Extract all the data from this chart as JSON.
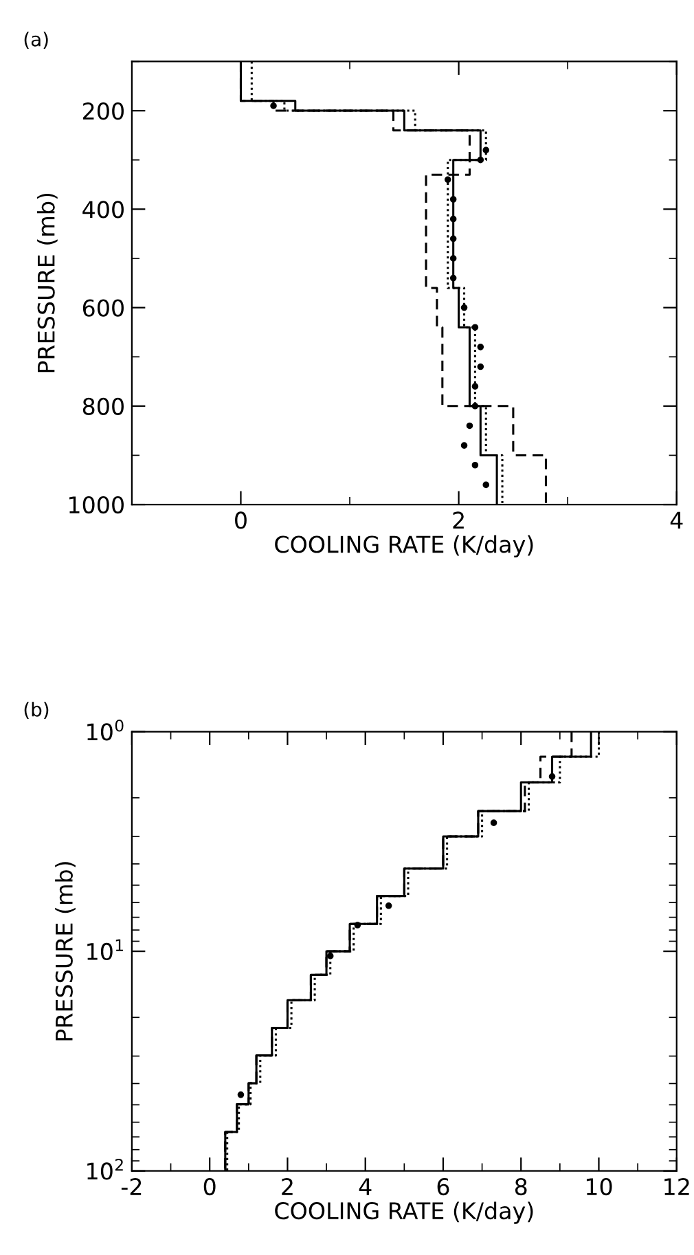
{
  "chart_data": [
    {
      "type": "step",
      "title": "(a)",
      "xlabel": "COOLING RATE (K/day)",
      "ylabel": "PRESSURE (mb)",
      "xlim": [
        -1,
        4
      ],
      "xticks": [
        0,
        2,
        4
      ],
      "ylim": [
        1000,
        100
      ],
      "yticks": [
        200,
        400,
        600,
        800,
        1000
      ],
      "series": [
        {
          "color": "#000000",
          "line_style": "solid",
          "x": [
            0.0,
            0.5,
            1.5,
            2.2,
            1.95,
            2.0,
            2.1,
            2.2,
            2.35,
            2.35
          ],
          "values": [
            100,
            180,
            200,
            240,
            300,
            560,
            640,
            800,
            900,
            1000
          ]
        },
        {
          "color": "#000000",
          "line_style": "dotted",
          "x": [
            0.1,
            0.4,
            1.6,
            2.25,
            1.9,
            2.05,
            2.15,
            2.25,
            2.4,
            2.4
          ],
          "values": [
            100,
            180,
            200,
            240,
            300,
            560,
            640,
            800,
            900,
            1000
          ]
        },
        {
          "color": "#000000",
          "line_style": "dashed",
          "x": [
            0.0,
            0.3,
            1.4,
            2.1,
            1.7,
            1.8,
            1.85,
            2.5,
            2.8,
            2.8
          ],
          "values": [
            100,
            180,
            200,
            240,
            330,
            560,
            640,
            800,
            900,
            1000
          ]
        },
        {
          "type": "scatter",
          "color": "#000000",
          "marker": "circle",
          "x": [
            0.3,
            2.25,
            2.2,
            1.9,
            1.95,
            1.95,
            1.95,
            1.95,
            1.95,
            2.05,
            2.15,
            2.2,
            2.2,
            2.15,
            2.15,
            2.1,
            2.05,
            2.15,
            2.25
          ],
          "values": [
            190,
            280,
            300,
            340,
            380,
            420,
            460,
            500,
            540,
            600,
            640,
            680,
            720,
            760,
            800,
            840,
            880,
            920,
            960
          ]
        }
      ]
    },
    {
      "type": "step",
      "title": "(b)",
      "xlabel": "COOLING RATE (K/day)",
      "ylabel": "PRESSURE (mb)",
      "log": "y",
      "xlim": [
        -2,
        12
      ],
      "xticks": [
        -2,
        0,
        2,
        4,
        6,
        8,
        10,
        12
      ],
      "ylim": [
        100,
        1
      ],
      "yticks": [
        {
          "value": 1,
          "label": "10$^{0}$"
        },
        {
          "value": 10,
          "label": "10$^{1}$"
        },
        {
          "value": 100,
          "label": "10$^{2}$"
        }
      ],
      "series": [
        {
          "color": "#000000",
          "line_style": "solid",
          "x": [
            9.8,
            8.8,
            8.0,
            6.9,
            6.0,
            5.0,
            4.3,
            3.6,
            3.0,
            2.6,
            2.0,
            1.6,
            1.2,
            1.0,
            0.7,
            0.4,
            0.4
          ],
          "values": [
            1,
            1.3,
            1.7,
            2.3,
            3.0,
            4.2,
            5.6,
            7.5,
            10,
            12.8,
            16.7,
            22.3,
            29.8,
            39.9,
            49.7,
            66.5,
            100
          ]
        },
        {
          "color": "#000000",
          "line_style": "dotted",
          "x": [
            10.0,
            9.0,
            8.2,
            7.0,
            6.1,
            5.1,
            4.4,
            3.7,
            3.1,
            2.7,
            2.1,
            1.7,
            1.3,
            1.05,
            0.75,
            0.45,
            0.45
          ],
          "values": [
            1,
            1.3,
            1.7,
            2.3,
            3.0,
            4.2,
            5.6,
            7.5,
            10,
            12.8,
            16.7,
            22.3,
            29.8,
            39.9,
            49.7,
            66.5,
            100
          ]
        },
        {
          "color": "#000000",
          "line_style": "dashed",
          "x": [
            9.3,
            8.5,
            8.1,
            6.9,
            6.0,
            5.0,
            4.3,
            3.6,
            3.0,
            2.6,
            2.0,
            1.6,
            1.2,
            1.0,
            0.7,
            0.4,
            0.4
          ],
          "values": [
            1,
            1.3,
            1.7,
            2.3,
            3.0,
            4.2,
            5.6,
            7.5,
            10,
            12.8,
            16.7,
            22.3,
            29.8,
            39.9,
            49.7,
            66.5,
            100
          ]
        },
        {
          "type": "scatter",
          "color": "#000000",
          "marker": "circle",
          "x": [
            8.8,
            7.3,
            4.6,
            3.8,
            3.1,
            0.8
          ],
          "values": [
            1.6,
            2.6,
            6.2,
            7.6,
            10.5,
            45
          ]
        }
      ]
    }
  ]
}
